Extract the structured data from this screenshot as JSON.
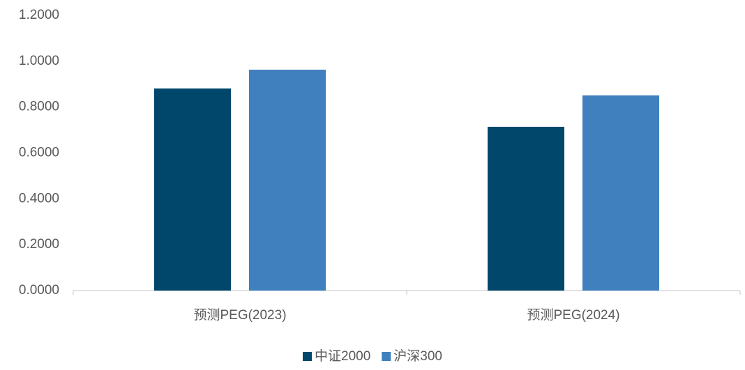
{
  "chart_data": {
    "type": "bar",
    "categories": [
      "预测PEG(2023)",
      "预测PEG(2024)"
    ],
    "series": [
      {
        "name": "中证2000",
        "color": "#00476b",
        "values": [
          0.881,
          0.714
        ]
      },
      {
        "name": "沪深300",
        "color": "#4080bf",
        "values": [
          0.963,
          0.851
        ]
      }
    ],
    "ylim": [
      0,
      1.2
    ],
    "yticks": [
      {
        "value": 0,
        "label": "0.0000"
      },
      {
        "value": 0.2,
        "label": "0.2000"
      },
      {
        "value": 0.4,
        "label": "0.4000"
      },
      {
        "value": 0.6,
        "label": "0.6000"
      },
      {
        "value": 0.8,
        "label": "0.8000"
      },
      {
        "value": 1.0,
        "label": "1.0000"
      },
      {
        "value": 1.2,
        "label": "1.2000"
      }
    ],
    "grid": false,
    "legend": "bottom"
  }
}
